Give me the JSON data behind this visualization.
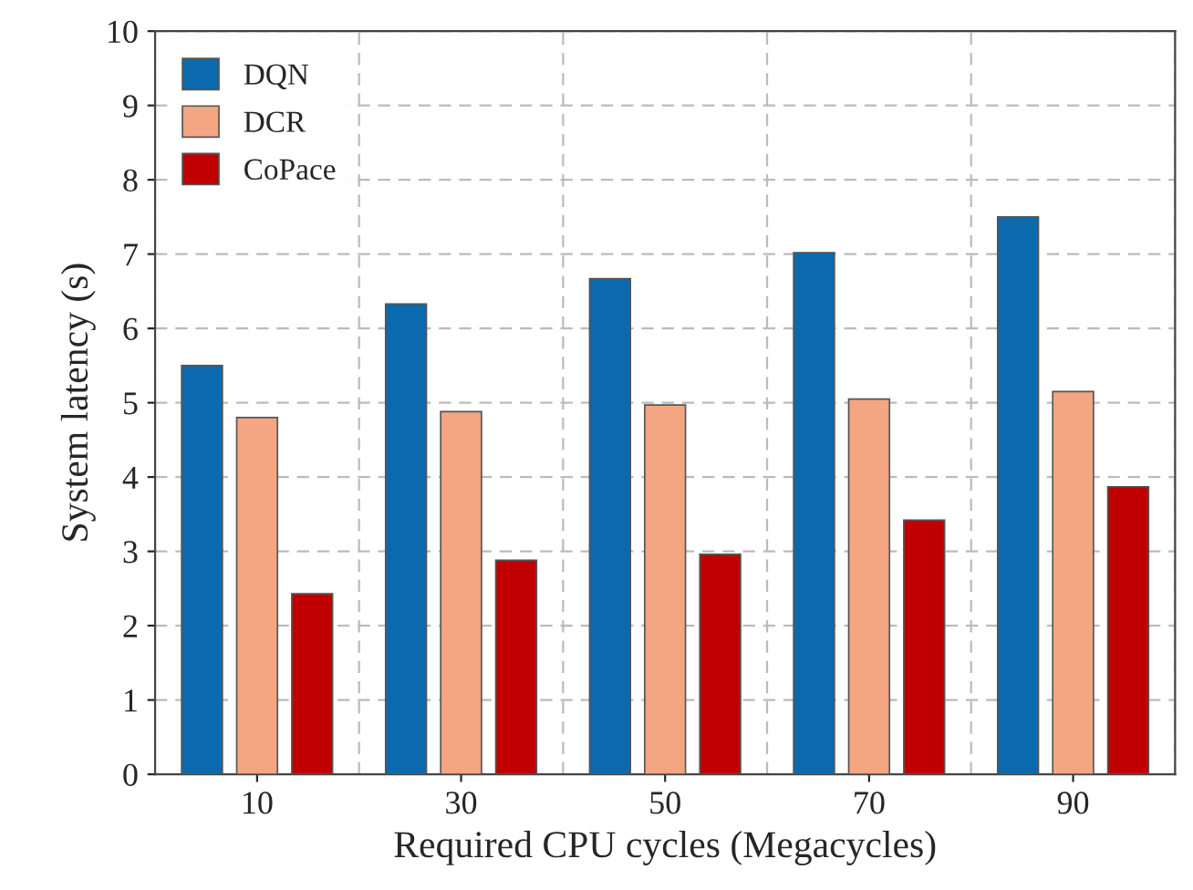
{
  "chart_data": {
    "type": "bar",
    "xlabel": "Required CPU cycles (Megacycles)",
    "ylabel": "System latency (s)",
    "categories": [
      "10",
      "30",
      "50",
      "70",
      "90"
    ],
    "series": [
      {
        "name": "DQN",
        "color": "#0a6aad",
        "values": [
          5.5,
          6.33,
          6.67,
          7.02,
          7.5
        ]
      },
      {
        "name": "DCR",
        "color": "#f4a582",
        "values": [
          4.8,
          4.88,
          4.97,
          5.05,
          5.15
        ]
      },
      {
        "name": "CoPace",
        "color": "#c00000",
        "values": [
          2.43,
          2.88,
          2.96,
          3.42,
          3.87
        ]
      }
    ],
    "ylim": [
      0,
      10
    ],
    "yticks": [
      0,
      1,
      2,
      3,
      4,
      5,
      6,
      7,
      8,
      9,
      10
    ],
    "grid": true,
    "legend": "top left"
  }
}
